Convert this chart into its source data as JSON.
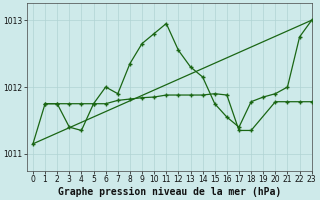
{
  "title": "Graphe pression niveau de la mer (hPa)",
  "bg_color": "#ceeaea",
  "line_color": "#1a6614",
  "xlim": [
    -0.5,
    23
  ],
  "ylim": [
    1010.75,
    1013.25
  ],
  "yticks": [
    1011,
    1012,
    1013
  ],
  "xticks": [
    0,
    1,
    2,
    3,
    4,
    5,
    6,
    7,
    8,
    9,
    10,
    11,
    12,
    13,
    14,
    15,
    16,
    17,
    18,
    19,
    20,
    21,
    22,
    23
  ],
  "series1_x": [
    0,
    23
  ],
  "series1_y": [
    1011.15,
    1013.0
  ],
  "series2_x": [
    0,
    1,
    2,
    3,
    4,
    5,
    6,
    7,
    8,
    9,
    10,
    11,
    12,
    13,
    14,
    15,
    16,
    17,
    18,
    19,
    20,
    21,
    22,
    23
  ],
  "series2_y": [
    1011.15,
    1011.75,
    1011.75,
    1011.4,
    1011.35,
    1011.75,
    1012.0,
    1011.9,
    1012.35,
    1012.65,
    1012.8,
    1012.95,
    1012.55,
    1012.3,
    1012.15,
    1011.75,
    1011.55,
    1011.4,
    1011.78,
    1011.85,
    1011.9,
    1012.0,
    1012.75,
    1013.0
  ],
  "series3_x": [
    1,
    2,
    3,
    4,
    5,
    6,
    7,
    8,
    9,
    10,
    11,
    12,
    13,
    14,
    15,
    16,
    17,
    18,
    20,
    21,
    22,
    23
  ],
  "series3_y": [
    1011.75,
    1011.75,
    1011.75,
    1011.75,
    1011.75,
    1011.75,
    1011.8,
    1011.82,
    1011.84,
    1011.85,
    1011.88,
    1011.88,
    1011.88,
    1011.88,
    1011.9,
    1011.88,
    1011.35,
    1011.35,
    1011.78,
    1011.78,
    1011.78,
    1011.78
  ],
  "grid_color": "#b0d4d4",
  "tick_fontsize": 5.5,
  "label_fontsize": 7.0
}
